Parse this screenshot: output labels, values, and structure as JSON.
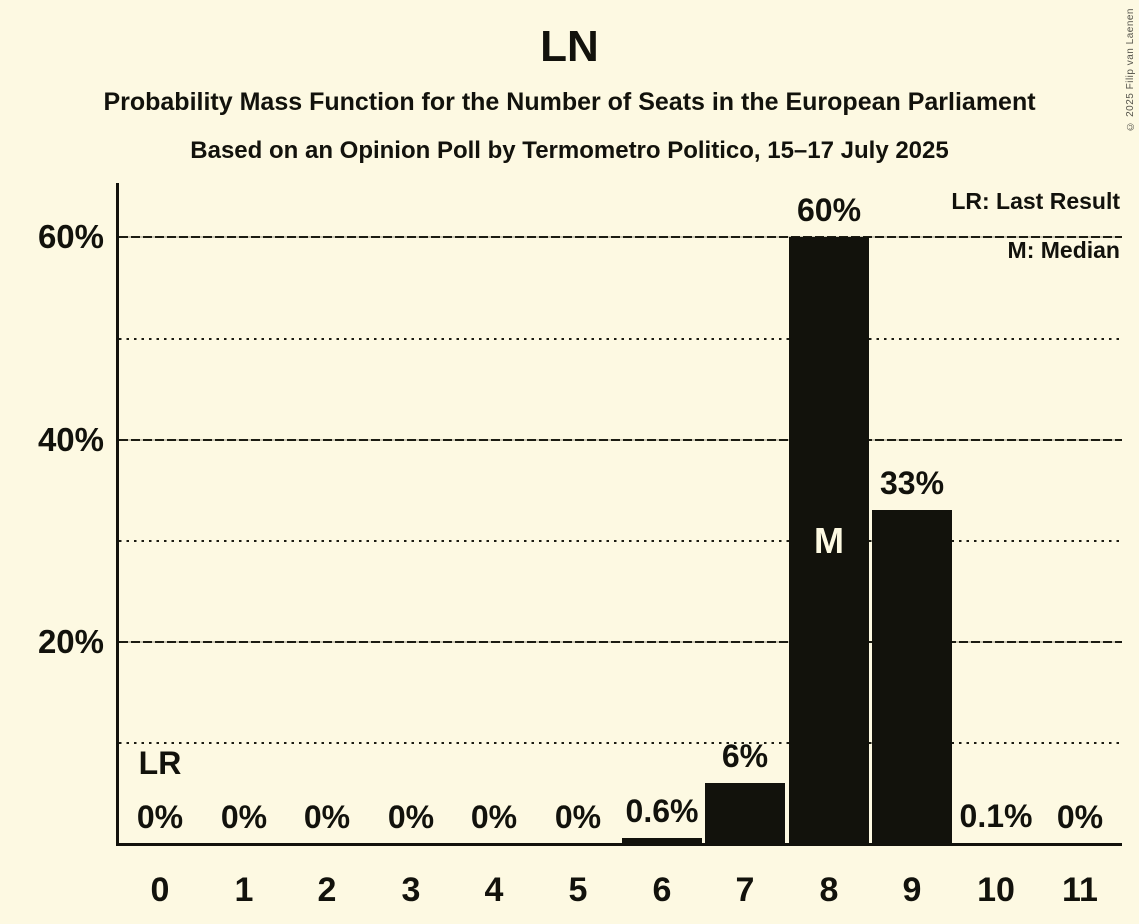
{
  "header": {
    "title": "LN",
    "subtitle": "Probability Mass Function for the Number of Seats in the European Parliament",
    "poll_line": "Based on an Opinion Poll by Termometro Politico, 15–17 July 2025"
  },
  "legend": {
    "lr": "LR: Last Result",
    "m": "M: Median"
  },
  "copyright": "© 2025 Filip van Laenen",
  "chart_data": {
    "type": "bar",
    "title": "LN",
    "xlabel": "",
    "ylabel": "",
    "categories": [
      "0",
      "1",
      "2",
      "3",
      "4",
      "5",
      "6",
      "7",
      "8",
      "9",
      "10",
      "11"
    ],
    "values": [
      0,
      0,
      0,
      0,
      0,
      0,
      0.6,
      6,
      60,
      33,
      0.1,
      0
    ],
    "bar_labels": [
      "0%",
      "0%",
      "0%",
      "0%",
      "0%",
      "0%",
      "0.6%",
      "6%",
      "60%",
      "33%",
      "0.1%",
      "0%"
    ],
    "ylim": [
      0,
      65
    ],
    "y_axis": {
      "ticks": [
        {
          "pct": 20,
          "label": "20%"
        },
        {
          "pct": 40,
          "label": "40%"
        },
        {
          "pct": 60,
          "label": "60%"
        }
      ],
      "solid_gridlines": [
        20,
        40,
        60
      ],
      "dotted_gridlines": [
        10,
        30,
        50
      ]
    },
    "grid": true,
    "legend_position": "top-right",
    "legend_entries": [
      "LR: Last Result",
      "M: Median"
    ],
    "annotations": {
      "median": {
        "seat": 8,
        "label": "M"
      },
      "last_result": {
        "seat": 0,
        "label": "LR"
      }
    },
    "colors": {
      "background": "#FDF9E2",
      "bar": "#12120C",
      "text": "#12120C",
      "median_label": "#FDF9E2",
      "copyright_text": "#55544B"
    }
  }
}
